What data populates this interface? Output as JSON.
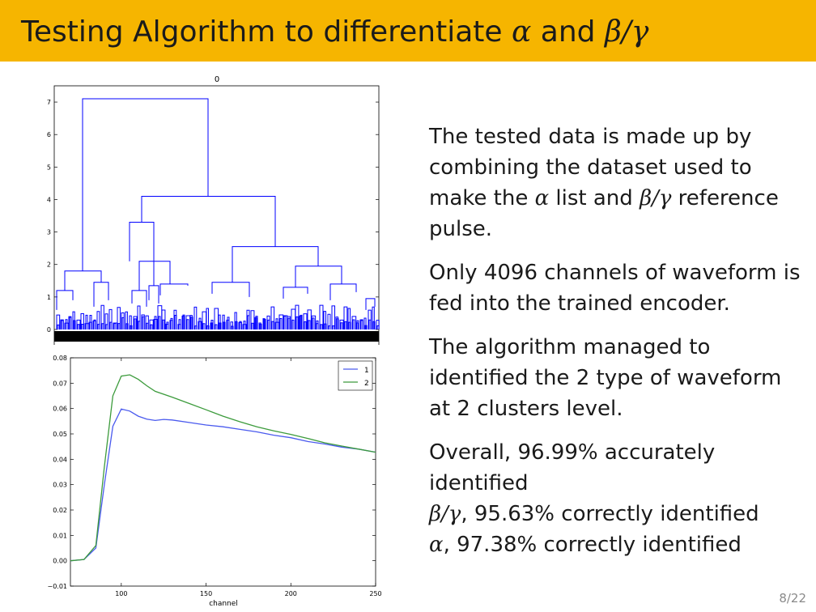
{
  "slide": {
    "title_prefix": "Testing Algorithm to differentiate ",
    "title_alpha": "α",
    "title_and": " and ",
    "title_beta_gamma": "β/γ",
    "page_number": "8/22",
    "paragraph1": {
      "text_a": "The tested data is made up by combining the dataset used to make the ",
      "alpha": "α",
      "text_b": " list and ",
      "beta_gamma": "β/γ",
      "text_c": " reference pulse."
    },
    "paragraph2": "Only 4096 channels of waveform is fed into the trained encoder.",
    "paragraph3": "The algorithm managed to identified the 2 type of waveform at 2 clusters level.",
    "paragraph4": {
      "line1": "Overall, 96.99% accurately identified",
      "bg_symbol": "β/γ",
      "bg_text": ", 95.63% correctly identified",
      "alpha_symbol": "α",
      "alpha_text": ", 97.38% correctly identified"
    }
  },
  "colors": {
    "accent": "#f6b500",
    "series1": "#4a5aee",
    "series2": "#3c9b3c",
    "dendrogram": "#0000ff"
  },
  "chart_data": [
    {
      "type": "dendrogram",
      "title": "0",
      "ylim": [
        0,
        7.5
      ],
      "yticks": [
        "0",
        "1",
        "2",
        "3",
        "4",
        "5",
        "6",
        "7"
      ],
      "merges": [
        {
          "left": 1.8,
          "right": 4.1,
          "height": 7.1
        },
        {
          "left": 3.3,
          "right": 2.55,
          "height": 4.1
        },
        {
          "left": 2.1,
          "right": 1.35,
          "height": 3.3
        },
        {
          "left": 1.45,
          "right": 1.95,
          "height": 2.55
        },
        {
          "left": 1.2,
          "right": 1.45,
          "height": 1.8
        }
      ]
    },
    {
      "type": "line",
      "xlabel": "channel",
      "xlim": [
        70,
        250
      ],
      "ylim": [
        -0.01,
        0.08
      ],
      "xticks": [
        "100",
        "150",
        "200",
        "250"
      ],
      "yticks": [
        "−0.01",
        "0.00",
        "0.01",
        "0.02",
        "0.03",
        "0.04",
        "0.05",
        "0.06",
        "0.07",
        "0.08"
      ],
      "legend": "top-right",
      "series": [
        {
          "name": "1",
          "x": [
            70,
            78,
            85,
            90,
            95,
            100,
            105,
            110,
            115,
            120,
            125,
            130,
            140,
            150,
            160,
            170,
            180,
            190,
            200,
            210,
            220,
            230,
            240,
            250
          ],
          "y": [
            0.0,
            0.0005,
            0.005,
            0.03,
            0.053,
            0.0598,
            0.059,
            0.057,
            0.0558,
            0.0553,
            0.0557,
            0.0555,
            0.0545,
            0.0535,
            0.0528,
            0.0518,
            0.0508,
            0.0495,
            0.0485,
            0.047,
            0.046,
            0.0448,
            0.044,
            0.0428
          ]
        },
        {
          "name": "2",
          "x": [
            70,
            78,
            85,
            90,
            95,
            100,
            105,
            110,
            115,
            120,
            130,
            140,
            150,
            160,
            170,
            180,
            190,
            200,
            210,
            220,
            230,
            240,
            250
          ],
          "y": [
            0.0,
            0.0005,
            0.006,
            0.037,
            0.065,
            0.0728,
            0.0733,
            0.0715,
            0.069,
            0.0668,
            0.0645,
            0.062,
            0.0595,
            0.057,
            0.0548,
            0.0528,
            0.0512,
            0.0498,
            0.0482,
            0.0465,
            0.0452,
            0.044,
            0.0428
          ]
        }
      ]
    }
  ]
}
